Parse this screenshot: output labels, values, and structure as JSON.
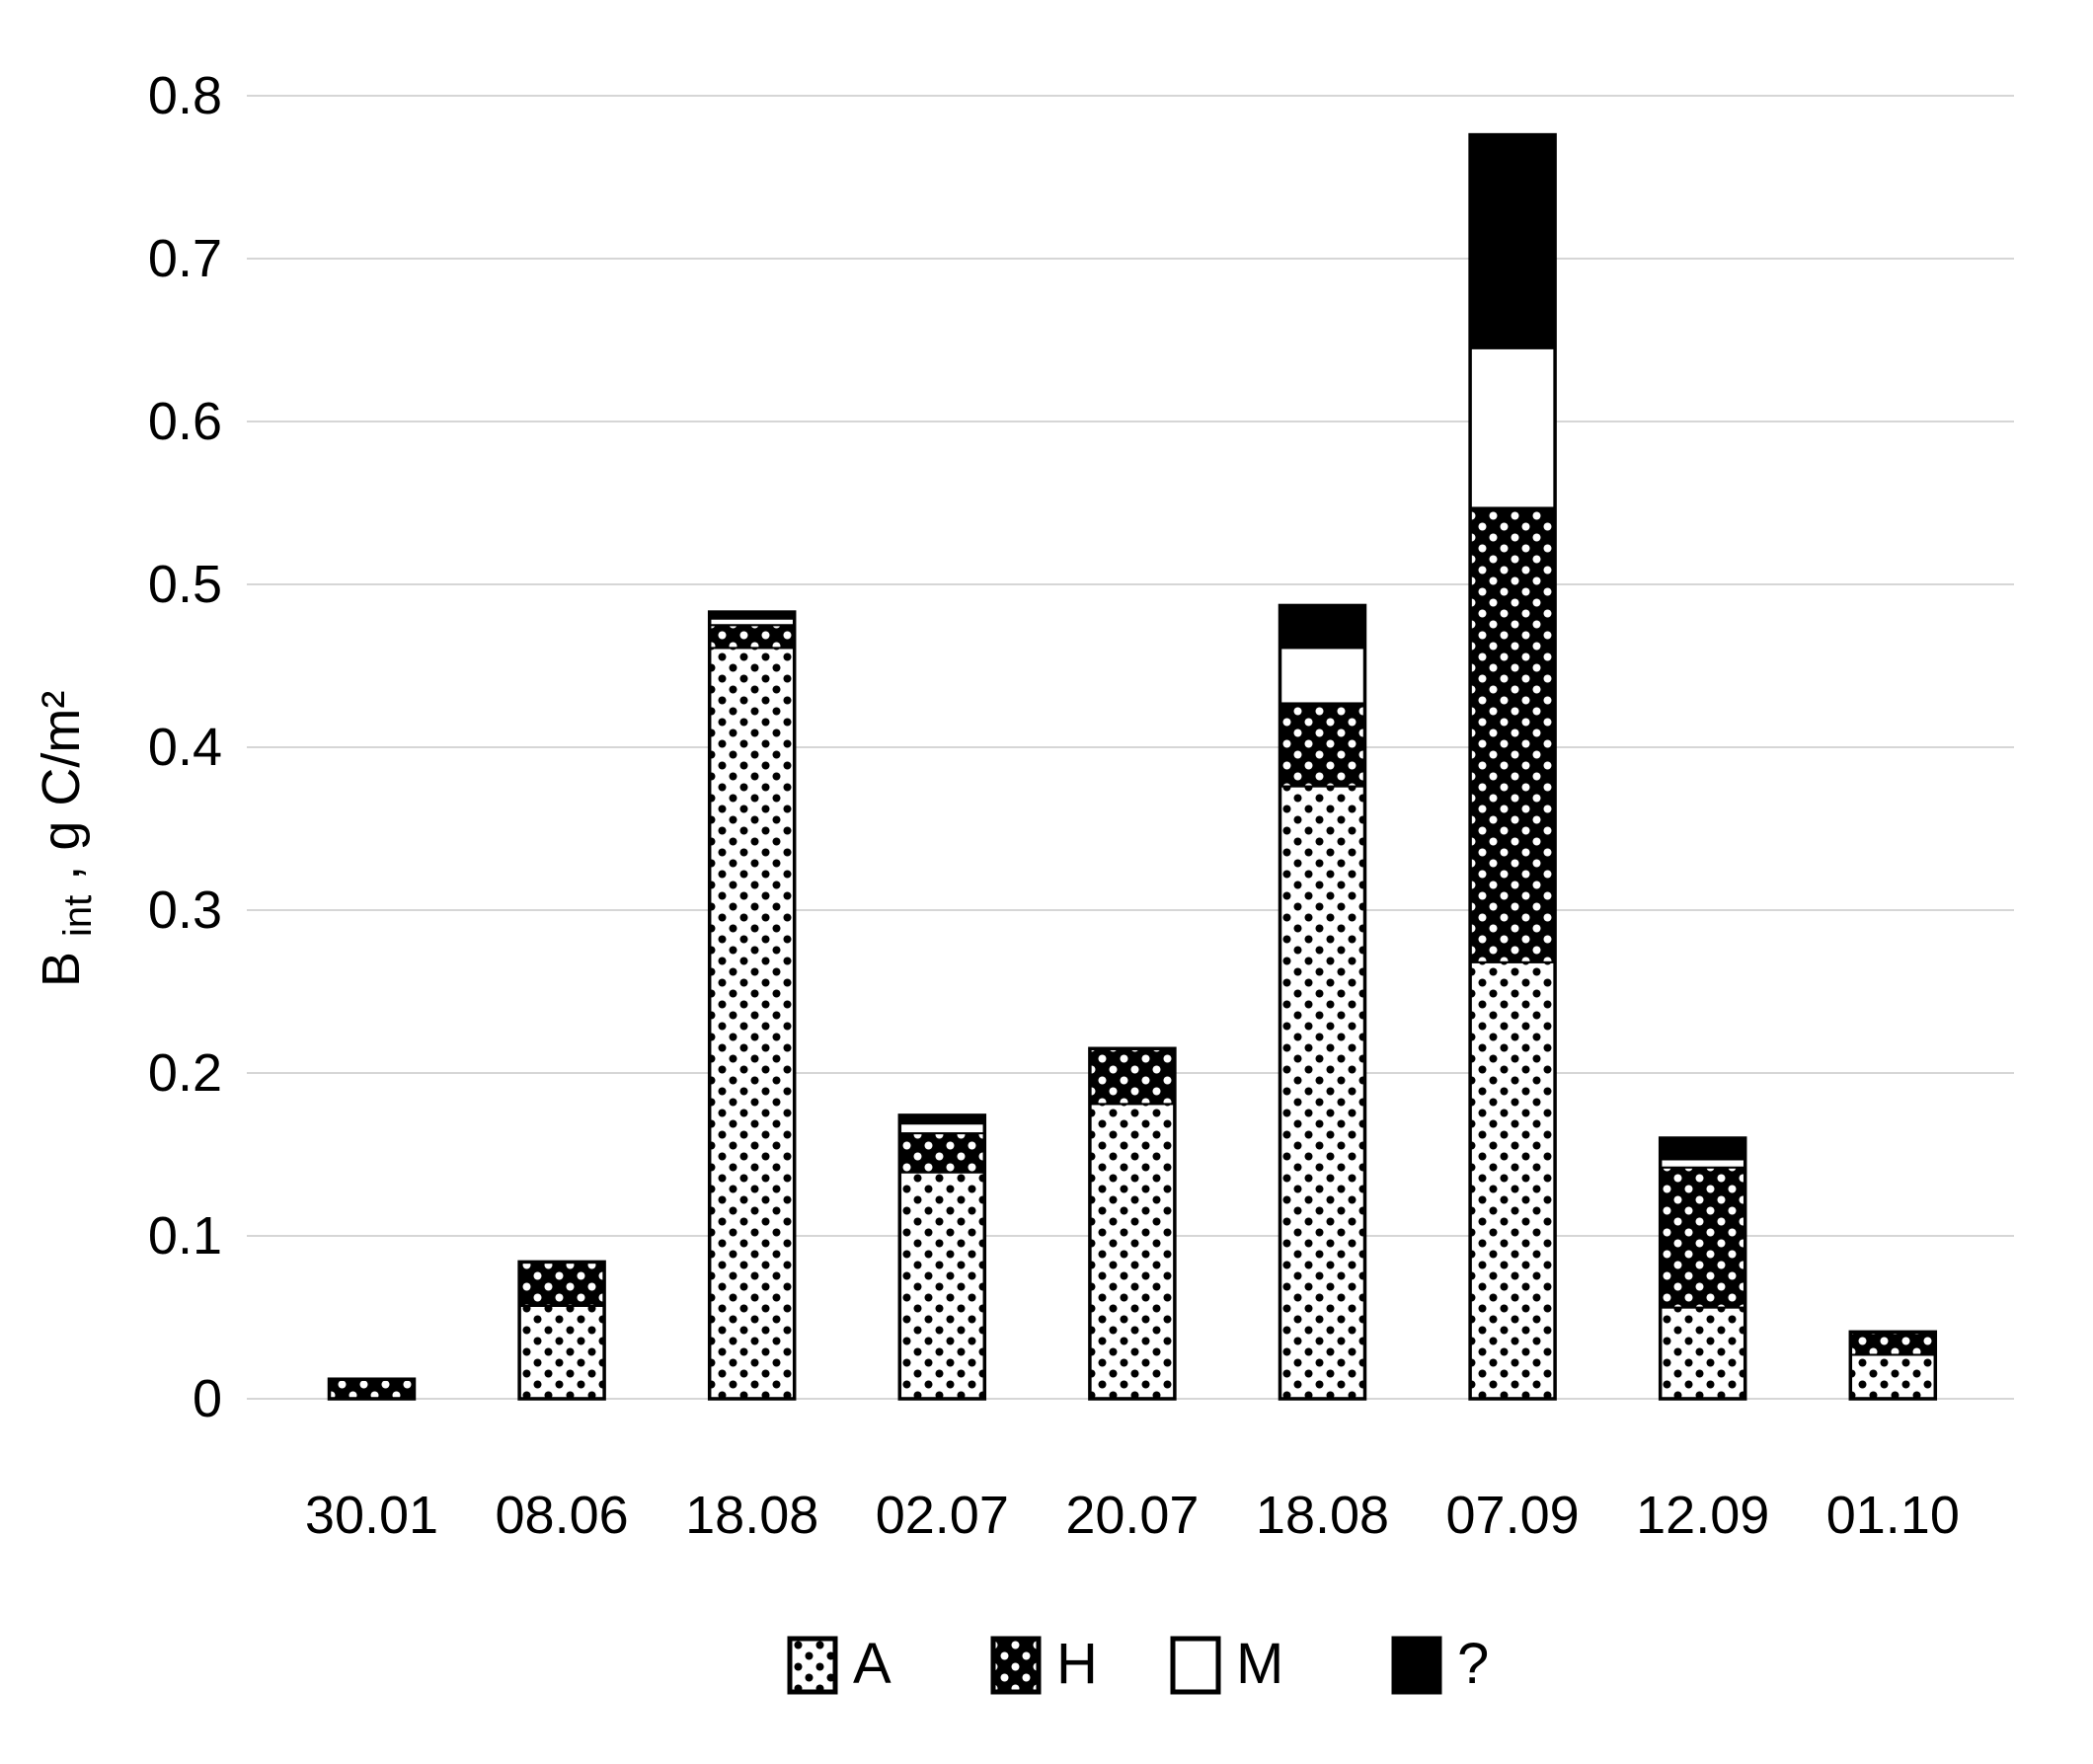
{
  "page": {
    "background": "#ffffff"
  },
  "chart_data": {
    "type": "bar",
    "stacked": true,
    "title": "",
    "xlabel": "",
    "ylabel": {
      "prefix": "B",
      "sub": "int",
      "suffix": ", g C/m²"
    },
    "ylim": [
      0,
      0.8
    ],
    "ytick_step": 0.1,
    "ytick_labels": [
      "0",
      "0.1",
      "0.2",
      "0.3",
      "0.4",
      "0.5",
      "0.6",
      "0.7",
      "0.8"
    ],
    "grid": true,
    "legend_position": "bottom",
    "categories": [
      "30.01",
      "08.06",
      "18.08",
      "02.07",
      "20.07",
      "18.08",
      "07.09",
      "12.09",
      "01.10"
    ],
    "series": [
      {
        "name": "A",
        "pattern": "black-dots-on-white",
        "values": [
          0,
          0.057,
          0.461,
          0.139,
          0.181,
          0.376,
          0.268,
          0.056,
          0.027
        ]
      },
      {
        "name": "H",
        "pattern": "white-dots-on-black",
        "values": [
          0.012,
          0.027,
          0.014,
          0.024,
          0.034,
          0.051,
          0.279,
          0.086,
          0.014
        ]
      },
      {
        "name": "M",
        "pattern": "solid-white",
        "values": [
          0,
          0,
          0.004,
          0.006,
          0,
          0.034,
          0.098,
          0.005,
          0
        ]
      },
      {
        "name": "?",
        "pattern": "solid-black",
        "values": [
          0,
          0,
          0.004,
          0.005,
          0,
          0.026,
          0.131,
          0.013,
          0
        ]
      }
    ],
    "bar_totals": [
      0.012,
      0.084,
      0.483,
      0.174,
      0.215,
      0.487,
      0.776,
      0.16,
      0.041
    ],
    "colors": {
      "ink": "#000000",
      "gridline": "#d6d6d6",
      "background": "#ffffff"
    }
  }
}
